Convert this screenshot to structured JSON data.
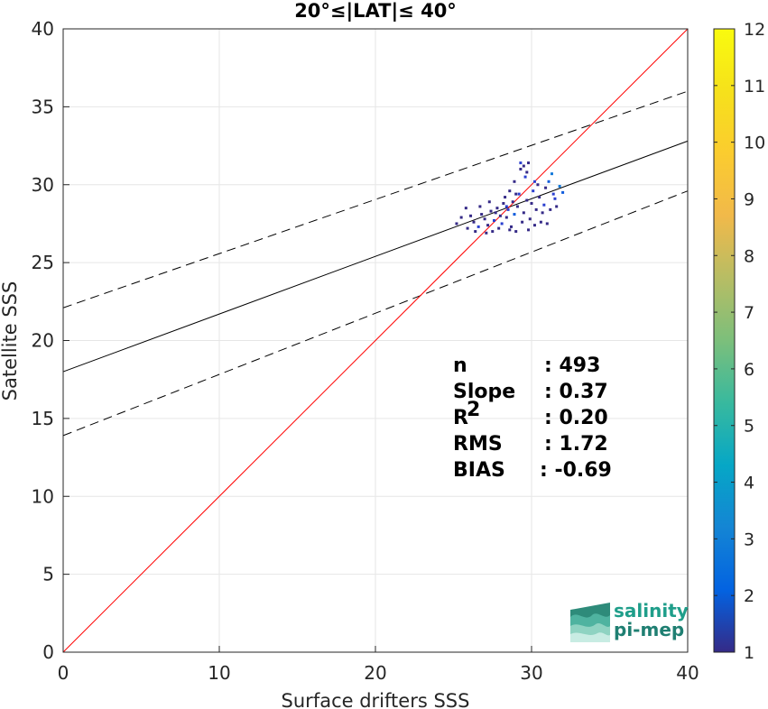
{
  "chart_data": {
    "type": "scatter",
    "title": "20°≤|LAT|≤ 40°",
    "xlabel": "Surface drifters SSS",
    "ylabel": "Satellite SSS",
    "xlim": [
      0,
      40
    ],
    "ylim": [
      0,
      40
    ],
    "xticks": [
      "0",
      "10",
      "20",
      "30",
      "40"
    ],
    "yticks": [
      "0",
      "5",
      "10",
      "15",
      "20",
      "25",
      "30",
      "35",
      "40"
    ],
    "grid": true,
    "colorbar": {
      "range": [
        1,
        12
      ],
      "ticks": [
        "1",
        "2",
        "3",
        "4",
        "5",
        "6",
        "7",
        "8",
        "9",
        "10",
        "11",
        "12"
      ],
      "colormap": "parula"
    },
    "lines": {
      "identity": {
        "color": "#ff0000",
        "x": [
          0,
          40
        ],
        "y": [
          0,
          40
        ]
      },
      "regression": {
        "color": "#000000",
        "x": [
          0,
          40
        ],
        "y": [
          18.0,
          32.8
        ]
      },
      "upper_bound": {
        "color": "#000000",
        "style": "dashed",
        "x": [
          0,
          40
        ],
        "y": [
          22.1,
          36.0
        ]
      },
      "lower_bound": {
        "color": "#000000",
        "style": "dashed",
        "x": [
          0,
          40
        ],
        "y": [
          13.9,
          29.6
        ]
      }
    },
    "points": [
      [
        25.2,
        27.5,
        1
      ],
      [
        25.5,
        27.9,
        1
      ],
      [
        25.9,
        27.2,
        1
      ],
      [
        26.1,
        28.0,
        1
      ],
      [
        26.3,
        27.6,
        1
      ],
      [
        26.6,
        27.3,
        2
      ],
      [
        26.8,
        28.1,
        1
      ],
      [
        27.0,
        27.8,
        1
      ],
      [
        27.2,
        27.4,
        1
      ],
      [
        27.4,
        28.3,
        1
      ],
      [
        27.5,
        27.0,
        1
      ],
      [
        27.6,
        27.7,
        2
      ],
      [
        27.8,
        28.5,
        1
      ],
      [
        27.9,
        27.2,
        1
      ],
      [
        28.0,
        28.0,
        1
      ],
      [
        28.1,
        27.5,
        2
      ],
      [
        28.2,
        28.8,
        1
      ],
      [
        28.3,
        29.2,
        1
      ],
      [
        28.4,
        27.9,
        1
      ],
      [
        28.5,
        28.4,
        2
      ],
      [
        28.6,
        29.6,
        1
      ],
      [
        28.7,
        27.3,
        1
      ],
      [
        28.8,
        28.9,
        1
      ],
      [
        28.9,
        30.2,
        1
      ],
      [
        29.0,
        27.0,
        1
      ],
      [
        29.1,
        28.6,
        1
      ],
      [
        29.2,
        29.4,
        2
      ],
      [
        29.3,
        31.0,
        1
      ],
      [
        29.4,
        27.6,
        1
      ],
      [
        29.5,
        28.2,
        1
      ],
      [
        29.6,
        30.5,
        2
      ],
      [
        29.7,
        29.0,
        1
      ],
      [
        29.8,
        31.4,
        1
      ],
      [
        29.9,
        27.8,
        1
      ],
      [
        30.0,
        28.8,
        1
      ],
      [
        30.1,
        29.6,
        2
      ],
      [
        30.2,
        27.4,
        1
      ],
      [
        30.3,
        28.4,
        1
      ],
      [
        30.5,
        29.2,
        1
      ],
      [
        30.6,
        27.6,
        1
      ],
      [
        30.8,
        28.7,
        2
      ],
      [
        30.9,
        29.8,
        1
      ],
      [
        31.0,
        27.5,
        1
      ],
      [
        31.1,
        30.2,
        3
      ],
      [
        31.2,
        28.4,
        1
      ],
      [
        31.3,
        30.7,
        4
      ],
      [
        31.4,
        29.4,
        2
      ],
      [
        31.6,
        28.6,
        1
      ],
      [
        31.8,
        29.9,
        4
      ],
      [
        32.0,
        29.5,
        3
      ],
      [
        29.3,
        31.4,
        2
      ],
      [
        29.5,
        31.2,
        1
      ],
      [
        29.7,
        30.8,
        1
      ],
      [
        30.2,
        30.2,
        2
      ],
      [
        27.3,
        28.9,
        1
      ],
      [
        26.7,
        28.6,
        1
      ],
      [
        27.1,
        26.9,
        1
      ],
      [
        28.6,
        27.1,
        1
      ],
      [
        29.8,
        27.1,
        1
      ],
      [
        28.9,
        28.1,
        3
      ],
      [
        28.4,
        28.6,
        2
      ],
      [
        29.0,
        29.4,
        1
      ],
      [
        27.7,
        28.2,
        1
      ],
      [
        25.8,
        28.5,
        1
      ],
      [
        26.4,
        27.0,
        1
      ],
      [
        30.4,
        30.0,
        1
      ],
      [
        30.7,
        28.2,
        1
      ],
      [
        31.5,
        29.1,
        2
      ]
    ],
    "stats": [
      {
        "label": "n",
        "value": ": 493"
      },
      {
        "label": "Slope",
        "value": ": 0.37"
      },
      {
        "label": "R",
        "sup": "2",
        "value": ": 0.20"
      },
      {
        "label": "RMS",
        "value": ": 1.72"
      },
      {
        "label": "BIAS",
        "value": ": -0.69"
      }
    ]
  },
  "logo": {
    "line1": "salinity",
    "line2": "pi-mep"
  }
}
